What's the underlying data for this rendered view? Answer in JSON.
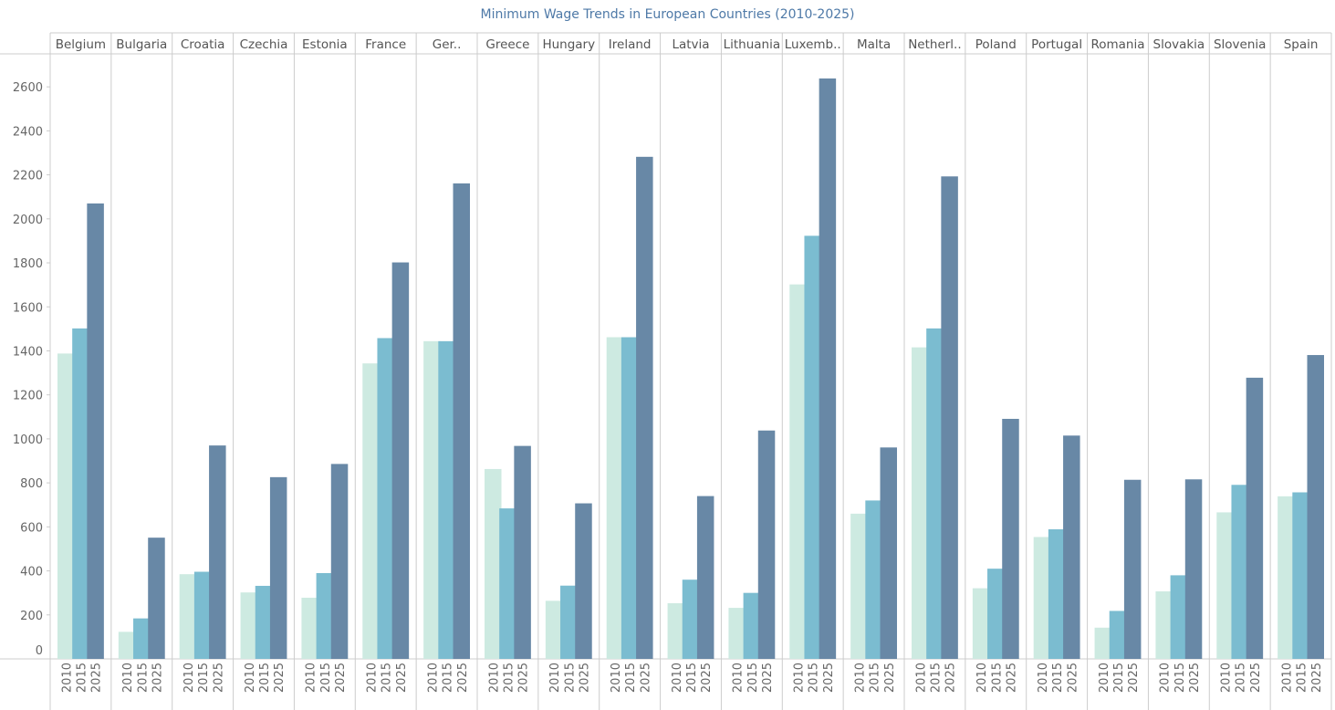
{
  "chart_data": {
    "type": "bar",
    "title": "Minimum Wage Trends in European Countries (2010-2025)",
    "xlabel": "",
    "ylabel": "",
    "ylim": [
      0,
      2750
    ],
    "y_ticks": [
      0,
      200,
      400,
      600,
      800,
      1000,
      1200,
      1400,
      1600,
      1800,
      2000,
      2200,
      2400,
      2600
    ],
    "years": [
      "2010",
      "2015",
      "2025"
    ],
    "year_colors": [
      "#cdeae1",
      "#7bbcd0",
      "#6888a6"
    ],
    "grid": false,
    "legend": "none",
    "countries": [
      {
        "label": "Belgium",
        "values": [
          1388,
          1502,
          2070
        ]
      },
      {
        "label": "Bulgaria",
        "values": [
          123,
          184,
          551
        ]
      },
      {
        "label": "Croatia",
        "values": [
          385,
          396,
          970
        ]
      },
      {
        "label": "Czechia",
        "values": [
          302,
          332,
          826
        ]
      },
      {
        "label": "Estonia",
        "values": [
          278,
          390,
          886
        ]
      },
      {
        "label": "France",
        "values": [
          1343,
          1458,
          1802
        ]
      },
      {
        "label": "Ger..",
        "values": [
          1444,
          1444,
          2161
        ]
      },
      {
        "label": "Greece",
        "values": [
          863,
          684,
          968
        ]
      },
      {
        "label": "Hungary",
        "values": [
          264,
          333,
          707
        ]
      },
      {
        "label": "Ireland",
        "values": [
          1462,
          1462,
          2282
        ]
      },
      {
        "label": "Latvia",
        "values": [
          253,
          360,
          740
        ]
      },
      {
        "label": "Lithuania",
        "values": [
          232,
          300,
          1038
        ]
      },
      {
        "label": "Luxemb..",
        "values": [
          1702,
          1923,
          2638
        ]
      },
      {
        "label": "Malta",
        "values": [
          660,
          720,
          961
        ]
      },
      {
        "label": "Netherl..",
        "values": [
          1416,
          1502,
          2193
        ]
      },
      {
        "label": "Poland",
        "values": [
          321,
          410,
          1091
        ]
      },
      {
        "label": "Portugal",
        "values": [
          554,
          589,
          1015
        ]
      },
      {
        "label": "Romania",
        "values": [
          142,
          218,
          814
        ]
      },
      {
        "label": "Slovakia",
        "values": [
          307,
          380,
          816
        ]
      },
      {
        "label": "Slovenia",
        "values": [
          666,
          791,
          1278
        ]
      },
      {
        "label": "Spain",
        "values": [
          739,
          757,
          1381
        ]
      }
    ]
  }
}
